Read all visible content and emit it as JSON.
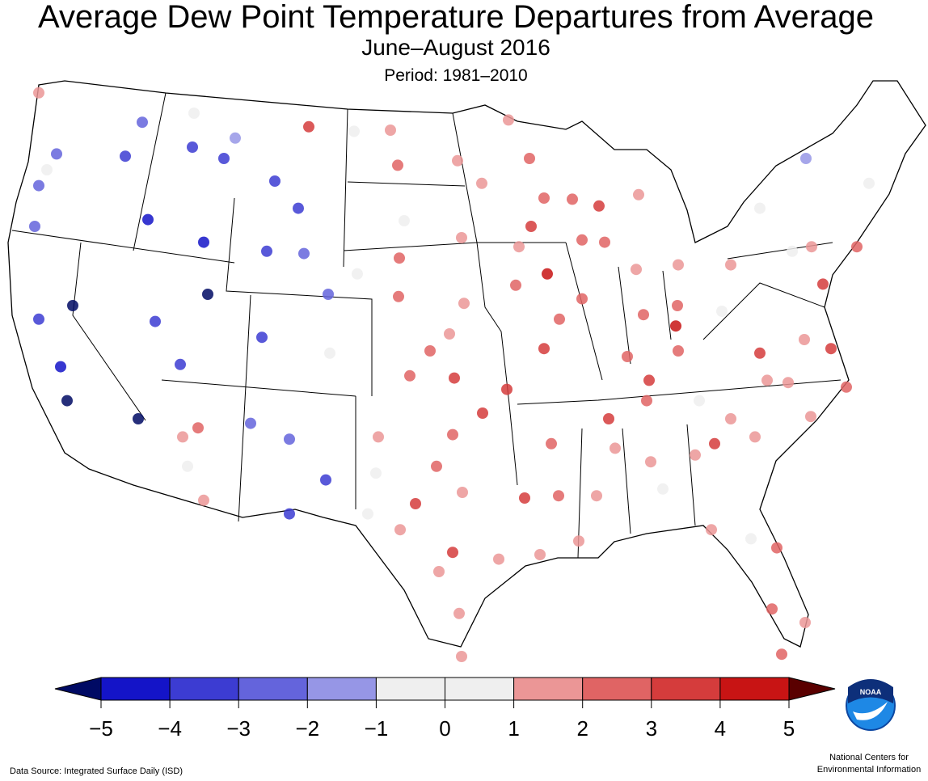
{
  "title": "Average Dew Point Temperature Departures from Average",
  "subtitle": "June–August 2016",
  "period": "Period: 1981–2010",
  "source": "Data Source: Integrated Surface Daily (ISD)",
  "credit": [
    "National Centers for",
    "Environmental Information"
  ],
  "logo_text": "NOAA",
  "colorbar": {
    "ticks": [
      {
        "value": -5,
        "label": "−5"
      },
      {
        "value": -4,
        "label": "−4"
      },
      {
        "value": -3,
        "label": "−3"
      },
      {
        "value": -2,
        "label": "−2"
      },
      {
        "value": -1,
        "label": "−1"
      },
      0,
      1,
      2,
      3,
      4,
      5
    ],
    "colors": [
      "#1414c8",
      "#3c3cd2",
      "#6464dc",
      "#9696e6",
      "#efefef",
      "#efefef",
      "#eb9696",
      "#e06464",
      "#d53c3c",
      "#c81414"
    ],
    "under": "#000a64",
    "over": "#5a0000"
  },
  "stations": [
    {
      "lon": -122.6,
      "lat": 49.4,
      "value": 1.5
    },
    {
      "lon": -116.2,
      "lat": 48.1,
      "value": -2.5
    },
    {
      "lon": -121.5,
      "lat": 46.7,
      "value": -2.5
    },
    {
      "lon": -117.25,
      "lat": 46.6,
      "value": -3.5
    },
    {
      "lon": -122.6,
      "lat": 45.3,
      "value": -2.5
    },
    {
      "lon": -122.85,
      "lat": 43.5,
      "value": -2.5
    },
    {
      "lon": -113.1,
      "lat": 47.0,
      "value": -3.5
    },
    {
      "lon": -111.15,
      "lat": 46.5,
      "value": -3.5
    },
    {
      "lon": -110.45,
      "lat": 47.4,
      "value": -1.5
    },
    {
      "lon": -105.9,
      "lat": 47.9,
      "value": 3.5
    },
    {
      "lon": -108.0,
      "lat": 45.5,
      "value": -3.5
    },
    {
      "lon": -115.85,
      "lat": 43.8,
      "value": -4.5
    },
    {
      "lon": -112.4,
      "lat": 42.8,
      "value": -4.5
    },
    {
      "lon": -106.55,
      "lat": 44.3,
      "value": -3.5
    },
    {
      "lon": -108.5,
      "lat": 42.4,
      "value": -3.5
    },
    {
      "lon": -106.2,
      "lat": 42.3,
      "value": -2.5
    },
    {
      "lon": -104.7,
      "lat": 40.5,
      "value": -2.5
    },
    {
      "lon": -112.15,
      "lat": 40.5,
      "value": -5.5
    },
    {
      "lon": -120.5,
      "lat": 40.0,
      "value": -5.5
    },
    {
      "lon": -122.6,
      "lat": 39.4,
      "value": -3.5
    },
    {
      "lon": -115.4,
      "lat": 39.3,
      "value": -3.5
    },
    {
      "lon": -113.85,
      "lat": 37.4,
      "value": -3.5
    },
    {
      "lon": -108.8,
      "lat": 38.6,
      "value": -3.5
    },
    {
      "lon": -121.25,
      "lat": 37.3,
      "value": -4.5
    },
    {
      "lon": -120.85,
      "lat": 35.8,
      "value": -5.5
    },
    {
      "lon": -116.45,
      "lat": 35.0,
      "value": -5.5
    },
    {
      "lon": -112.75,
      "lat": 34.6,
      "value": 2.5
    },
    {
      "lon": -113.7,
      "lat": 34.2,
      "value": 1.5
    },
    {
      "lon": -113.4,
      "lat": 32.9,
      "value": 0.5
    },
    {
      "lon": -112.4,
      "lat": 31.4,
      "value": 1.5
    },
    {
      "lon": -109.5,
      "lat": 34.8,
      "value": -2.5
    },
    {
      "lon": -107.1,
      "lat": 34.1,
      "value": -2.5
    },
    {
      "lon": -104.85,
      "lat": 32.3,
      "value": -3.5
    },
    {
      "lon": -107.1,
      "lat": 30.8,
      "value": -3.5
    },
    {
      "lon": -100.85,
      "lat": 47.75,
      "value": 1.5
    },
    {
      "lon": -100.4,
      "lat": 46.2,
      "value": 2.5
    },
    {
      "lon": -103.1,
      "lat": 47.7,
      "value": 0.5
    },
    {
      "lon": -96.7,
      "lat": 46.4,
      "value": 1.5
    },
    {
      "lon": -95.2,
      "lat": 45.4,
      "value": 1.5
    },
    {
      "lon": -93.55,
      "lat": 48.2,
      "value": 1.5
    },
    {
      "lon": -92.25,
      "lat": 46.5,
      "value": 2.5
    },
    {
      "lon": -100.0,
      "lat": 43.75,
      "value": 0.5
    },
    {
      "lon": -96.45,
      "lat": 43.0,
      "value": 1.5
    },
    {
      "lon": -100.3,
      "lat": 42.1,
      "value": 2.5
    },
    {
      "lon": -100.35,
      "lat": 40.4,
      "value": 2.5
    },
    {
      "lon": -96.3,
      "lat": 40.1,
      "value": 1.5
    },
    {
      "lon": -92.9,
      "lat": 42.6,
      "value": 1.5
    },
    {
      "lon": -91.15,
      "lat": 41.4,
      "value": 4.5
    },
    {
      "lon": -93.1,
      "lat": 40.9,
      "value": 2.5
    },
    {
      "lon": -91.35,
      "lat": 44.75,
      "value": 2.5
    },
    {
      "lon": -89.6,
      "lat": 44.7,
      "value": 2.5
    },
    {
      "lon": -87.95,
      "lat": 44.4,
      "value": 3.5
    },
    {
      "lon": -92.15,
      "lat": 43.5,
      "value": 3.5
    },
    {
      "lon": -89.0,
      "lat": 42.9,
      "value": 2.5
    },
    {
      "lon": -87.6,
      "lat": 42.8,
      "value": 2.5
    },
    {
      "lon": -85.5,
      "lat": 44.9,
      "value": 1.5
    },
    {
      "lon": -85.65,
      "lat": 41.6,
      "value": 1.5
    },
    {
      "lon": -83.05,
      "lat": 41.8,
      "value": 1.5
    },
    {
      "lon": -79.8,
      "lat": 41.8,
      "value": 1.5
    },
    {
      "lon": -98.4,
      "lat": 38.0,
      "value": 2.5
    },
    {
      "lon": -97.2,
      "lat": 38.75,
      "value": 1.5
    },
    {
      "lon": -99.65,
      "lat": 36.9,
      "value": 2.5
    },
    {
      "lon": -96.9,
      "lat": 36.8,
      "value": 3.5
    },
    {
      "lon": -93.65,
      "lat": 36.3,
      "value": 3.5
    },
    {
      "lon": -91.35,
      "lat": 38.1,
      "value": 3.5
    },
    {
      "lon": -89.0,
      "lat": 40.3,
      "value": 2.5
    },
    {
      "lon": -90.4,
      "lat": 39.4,
      "value": 2.5
    },
    {
      "lon": -85.2,
      "lat": 39.6,
      "value": 2.5
    },
    {
      "lon": -83.1,
      "lat": 40.0,
      "value": 2.5
    },
    {
      "lon": -83.2,
      "lat": 39.1,
      "value": 4.5
    },
    {
      "lon": -83.05,
      "lat": 38.0,
      "value": 2.5
    },
    {
      "lon": -84.85,
      "lat": 36.7,
      "value": 3.5
    },
    {
      "lon": -86.2,
      "lat": 37.75,
      "value": 2.5
    },
    {
      "lon": -87.35,
      "lat": 35.0,
      "value": 3.5
    },
    {
      "lon": -85.0,
      "lat": 35.8,
      "value": 2.5
    },
    {
      "lon": -95.15,
      "lat": 35.25,
      "value": 3.5
    },
    {
      "lon": -97.0,
      "lat": 34.3,
      "value": 2.5
    },
    {
      "lon": -101.6,
      "lat": 34.2,
      "value": 1.5
    },
    {
      "lon": -101.75,
      "lat": 32.6,
      "value": 0.5
    },
    {
      "lon": -98.0,
      "lat": 32.9,
      "value": 2.5
    },
    {
      "lon": -99.3,
      "lat": 31.25,
      "value": 3.5
    },
    {
      "lon": -96.4,
      "lat": 31.75,
      "value": 1.5
    },
    {
      "lon": -100.25,
      "lat": 30.1,
      "value": 1.5
    },
    {
      "lon": -97.0,
      "lat": 29.1,
      "value": 3.5
    },
    {
      "lon": -97.85,
      "lat": 28.25,
      "value": 1.5
    },
    {
      "lon": -96.6,
      "lat": 26.4,
      "value": 1.5
    },
    {
      "lon": -96.45,
      "lat": 24.5,
      "value": 1.5
    },
    {
      "lon": -102.25,
      "lat": 30.8,
      "value": 0.5
    },
    {
      "lon": -90.9,
      "lat": 33.9,
      "value": 2.5
    },
    {
      "lon": -92.55,
      "lat": 31.5,
      "value": 3.5
    },
    {
      "lon": -90.45,
      "lat": 31.6,
      "value": 2.5
    },
    {
      "lon": -94.15,
      "lat": 28.8,
      "value": 1.5
    },
    {
      "lon": -91.6,
      "lat": 29.0,
      "value": 1.5
    },
    {
      "lon": -89.2,
      "lat": 29.6,
      "value": 1.5
    },
    {
      "lon": -88.1,
      "lat": 31.6,
      "value": 1.5
    },
    {
      "lon": -86.95,
      "lat": 33.7,
      "value": 1.5
    },
    {
      "lon": -84.75,
      "lat": 33.1,
      "value": 1.5
    },
    {
      "lon": -84.0,
      "lat": 31.9,
      "value": 0.5
    },
    {
      "lon": -82.0,
      "lat": 33.4,
      "value": 1.5
    },
    {
      "lon": -80.8,
      "lat": 33.9,
      "value": 3.5
    },
    {
      "lon": -78.3,
      "lat": 34.2,
      "value": 1.5
    },
    {
      "lon": -79.8,
      "lat": 35.0,
      "value": 1.5
    },
    {
      "lon": -81.0,
      "lat": 30.1,
      "value": 1.5
    },
    {
      "lon": -78.55,
      "lat": 29.7,
      "value": 0.5
    },
    {
      "lon": -76.95,
      "lat": 29.3,
      "value": 2.5
    },
    {
      "lon": -77.25,
      "lat": 26.6,
      "value": 2.5
    },
    {
      "lon": -75.2,
      "lat": 26.0,
      "value": 1.5
    },
    {
      "lon": -76.65,
      "lat": 24.6,
      "value": 2.5
    },
    {
      "lon": -78.0,
      "lat": 37.9,
      "value": 3.5
    },
    {
      "lon": -75.25,
      "lat": 38.5,
      "value": 1.5
    },
    {
      "lon": -73.6,
      "lat": 38.1,
      "value": 3.5
    },
    {
      "lon": -72.65,
      "lat": 36.4,
      "value": 2.5
    },
    {
      "lon": -74.85,
      "lat": 35.1,
      "value": 1.5
    },
    {
      "lon": -77.55,
      "lat": 36.7,
      "value": 1.5
    },
    {
      "lon": -76.25,
      "lat": 36.6,
      "value": 1.5
    },
    {
      "lon": -74.8,
      "lat": 42.6,
      "value": 1.5
    },
    {
      "lon": -72.0,
      "lat": 42.6,
      "value": 2.5
    },
    {
      "lon": -74.1,
      "lat": 40.95,
      "value": 3.5
    },
    {
      "lon": -75.15,
      "lat": 46.5,
      "value": -1.5
    },
    {
      "lon": -78.0,
      "lat": 44.3,
      "value": 0.5
    },
    {
      "lon": -71.25,
      "lat": 45.4,
      "value": 0.5
    },
    {
      "lon": -76.0,
      "lat": 42.4,
      "value": 0.5
    },
    {
      "lon": -104.6,
      "lat": 37.9,
      "value": 0.5
    },
    {
      "lon": -102.9,
      "lat": 41.4,
      "value": 0.5
    },
    {
      "lon": -113.0,
      "lat": 48.5,
      "value": 0.5
    },
    {
      "lon": -122.1,
      "lat": 46.0,
      "value": 0.5
    },
    {
      "lon": -80.35,
      "lat": 39.75,
      "value": 0.5
    },
    {
      "lon": -81.75,
      "lat": 35.8,
      "value": 0.5
    }
  ]
}
